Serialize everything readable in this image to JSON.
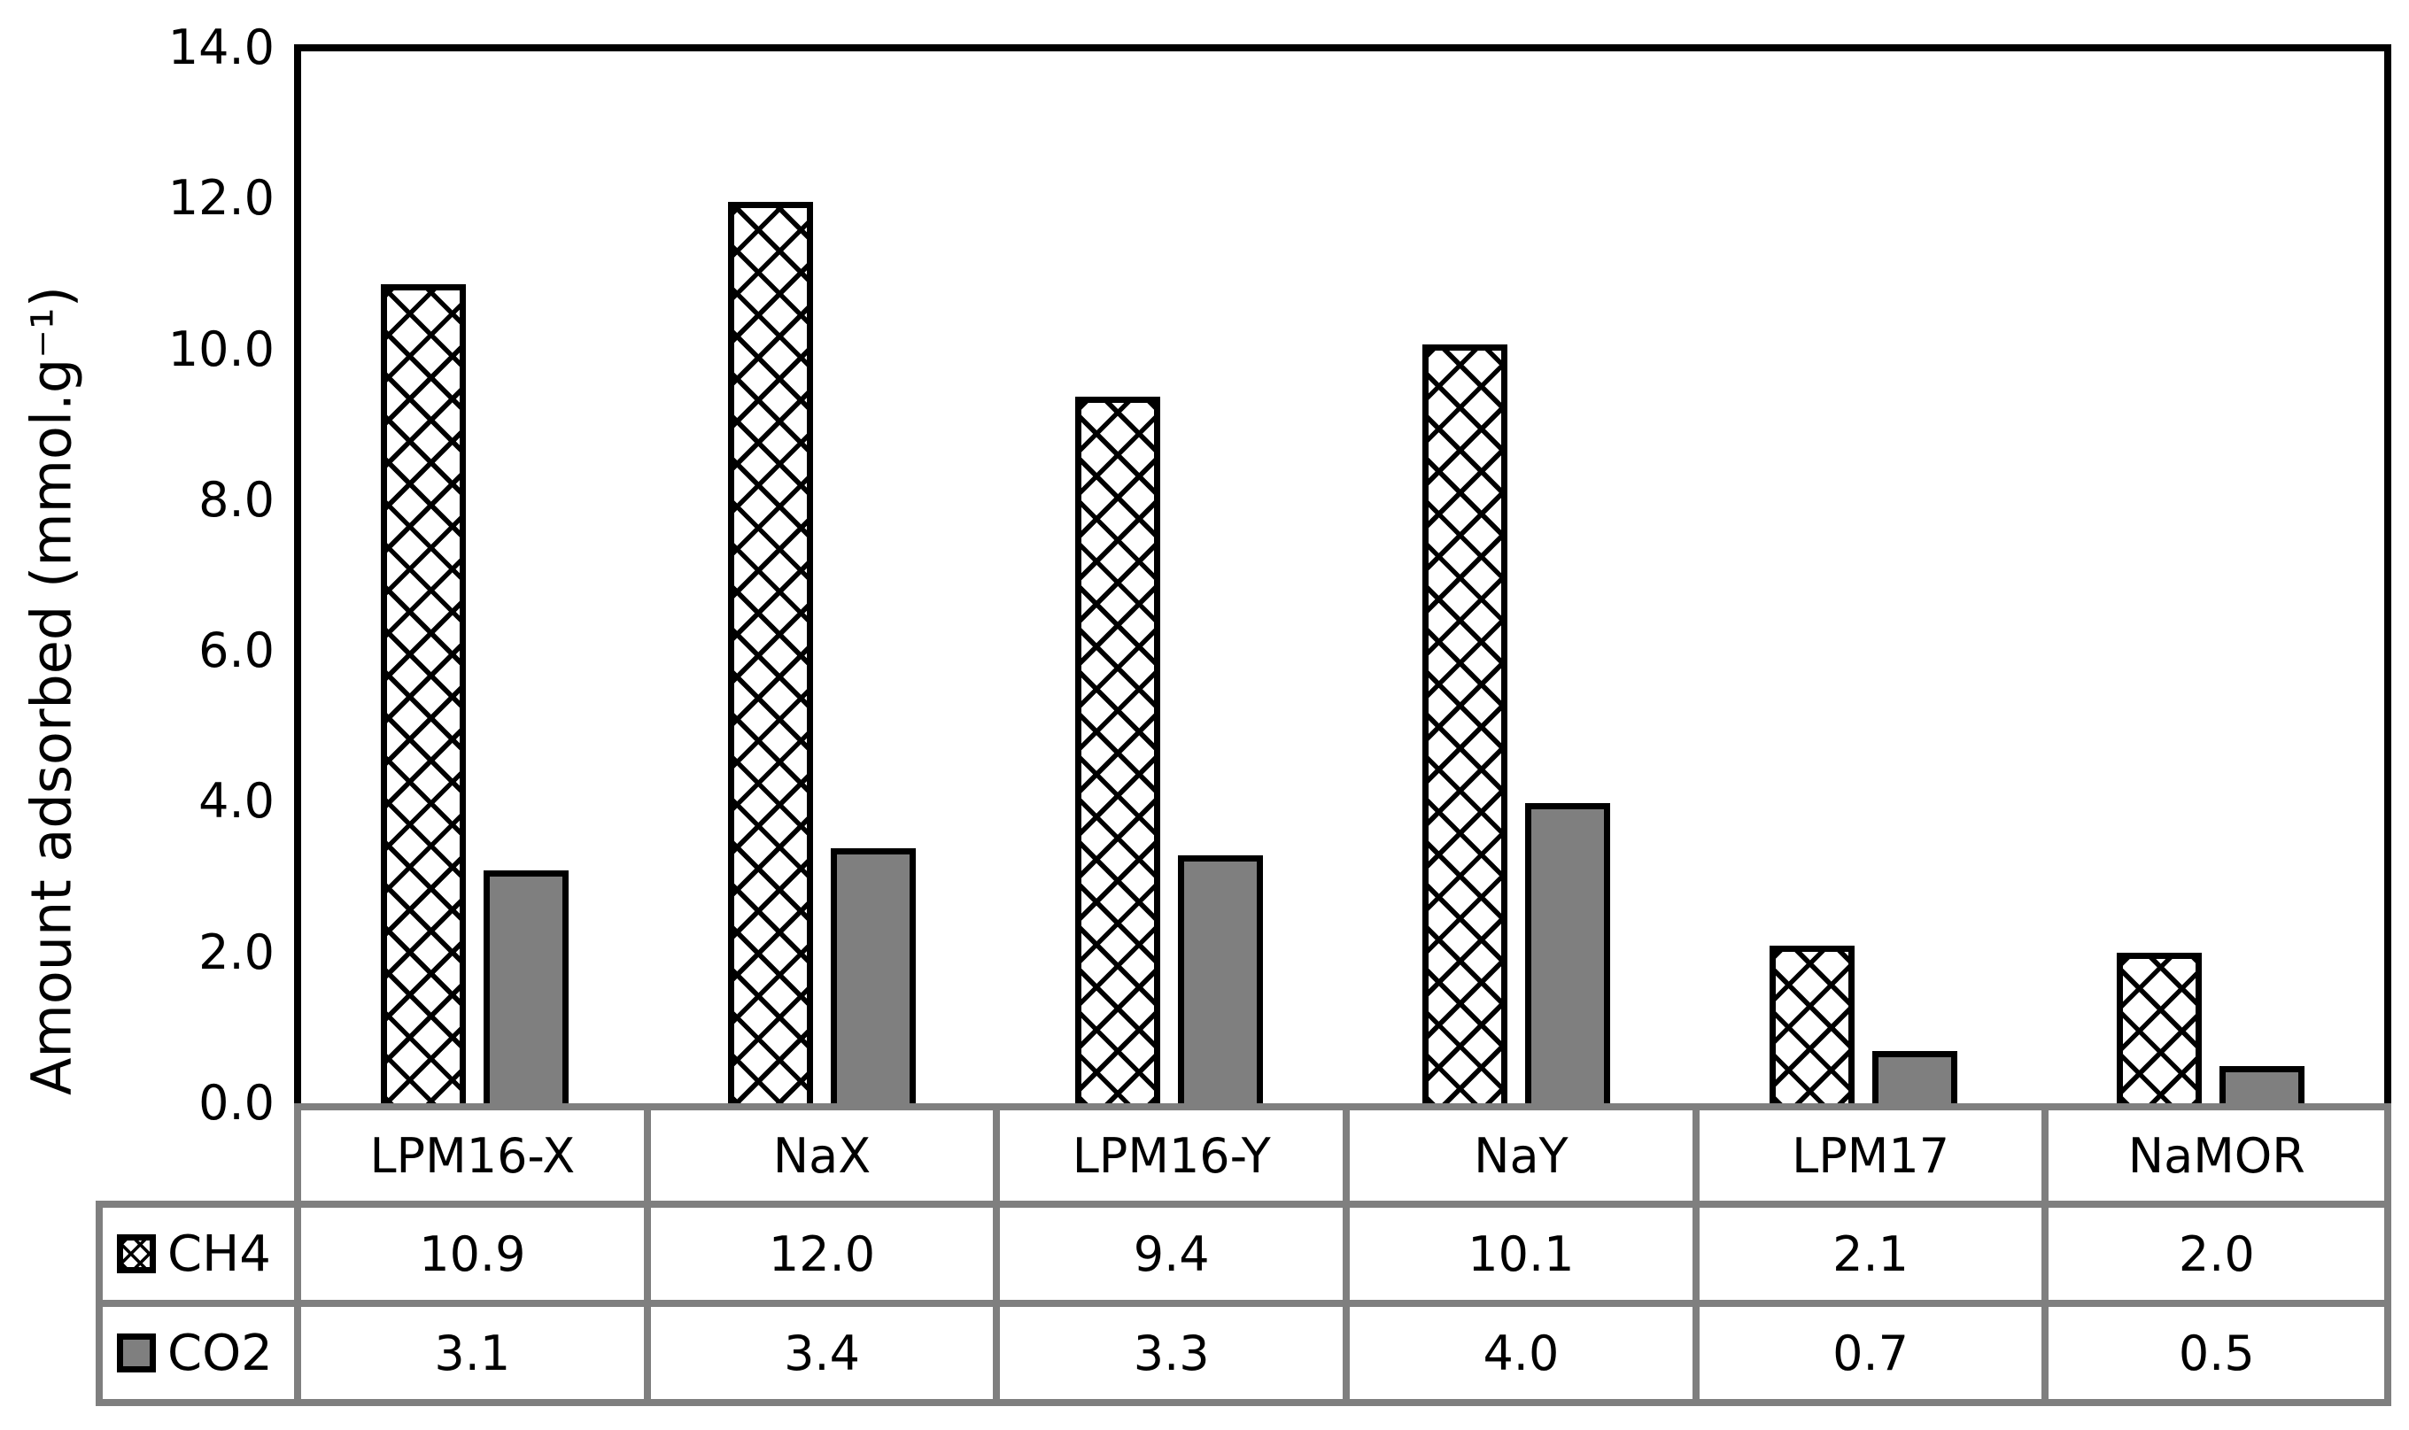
{
  "chart_data": {
    "type": "bar",
    "title": "",
    "xlabel": "",
    "ylabel": "Amount adsorbed (mmol.g⁻¹)",
    "ylim": [
      0,
      14
    ],
    "ytick_interval": 2.0,
    "grid": false,
    "legend_position": "left column of attached data table",
    "categories": [
      "LPM16-X",
      "NaX",
      "LPM16-Y",
      "NaY",
      "LPM17",
      "NaMOR"
    ],
    "series": [
      {
        "name": "CH4",
        "style": "black dotted-diamond crosshatch on white, black outline",
        "values": [
          10.9,
          12.0,
          9.4,
          10.1,
          2.1,
          2.0
        ]
      },
      {
        "name": "CO2",
        "style": "solid gray, black outline",
        "color": "#7f7f7f",
        "values": [
          3.1,
          3.4,
          3.3,
          4.0,
          0.7,
          0.5
        ]
      }
    ]
  },
  "y_axis": {
    "title": "Amount adsorbed (mmol.g⁻¹)",
    "tick_labels": [
      "14.0",
      "12.0",
      "10.0",
      "8.0",
      "6.0",
      "4.0",
      "2.0",
      "0.0"
    ]
  },
  "data_table": {
    "category_row": [
      "LPM16-X",
      "NaX",
      "LPM16-Y",
      "NaY",
      "LPM17",
      "NaMOR"
    ],
    "rows": [
      {
        "label": "CH4",
        "cells": [
          "10.9",
          "12.0",
          "9.4",
          "10.1",
          "2.1",
          "2.0"
        ]
      },
      {
        "label": "CO2",
        "cells": [
          "3.1",
          "3.4",
          "3.3",
          "4.0",
          "0.7",
          "0.5"
        ]
      }
    ]
  },
  "colors": {
    "bar_border": "#000000",
    "co2_fill": "#7f7f7f",
    "table_border": "#7f7f7f",
    "axis_line": "#000000",
    "text": "#000000",
    "background": "#ffffff"
  }
}
